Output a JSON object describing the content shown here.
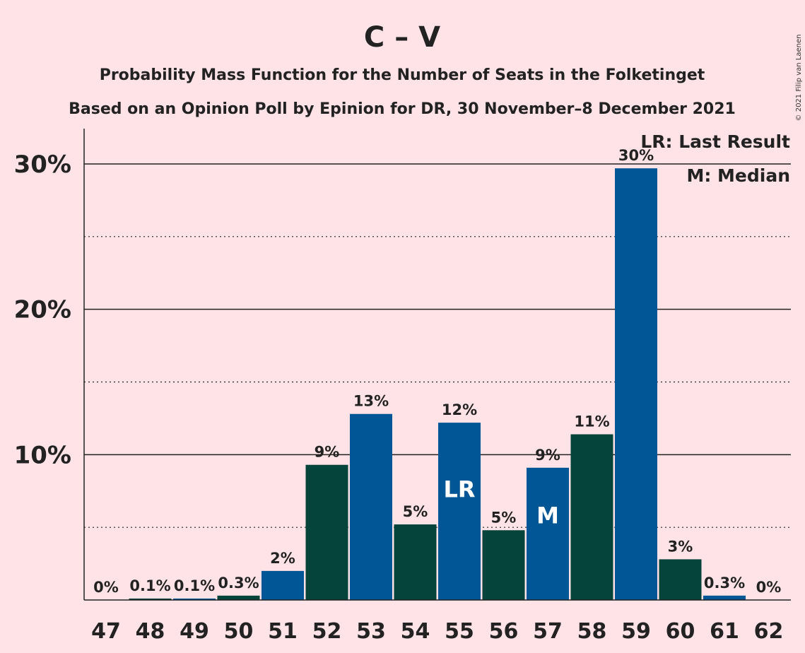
{
  "chart_data": {
    "type": "bar",
    "title": "C – V",
    "subtitle1": "Probability Mass Function for the Number of Seats in the Folketinget",
    "subtitle2": "Based on an Opinion Poll by Epinion for DR, 30 November–8 December 2021",
    "copyright": "© 2021 Filip van Laenen",
    "categories": [
      "47",
      "48",
      "49",
      "50",
      "51",
      "52",
      "53",
      "54",
      "55",
      "56",
      "57",
      "58",
      "59",
      "60",
      "61",
      "62"
    ],
    "values": [
      0,
      0.1,
      0.1,
      0.3,
      2.0,
      9.3,
      12.8,
      5.2,
      12.2,
      4.8,
      9.1,
      11.4,
      29.7,
      2.8,
      0.3,
      0
    ],
    "data_labels": [
      "0%",
      "0.1%",
      "0.1%",
      "0.3%",
      "2%",
      "9%",
      "13%",
      "5%",
      "12%",
      "5%",
      "9%",
      "11%",
      "30%",
      "3%",
      "0.3%",
      "0%"
    ],
    "bar_colors": [
      "#04443a",
      "#04443a",
      "#015696",
      "#04443a",
      "#015696",
      "#04443a",
      "#015696",
      "#04443a",
      "#015696",
      "#04443a",
      "#015696",
      "#04443a",
      "#015696",
      "#04443a",
      "#015696",
      "#04443a"
    ],
    "ylim": [
      0,
      32.5
    ],
    "yticks": [
      10,
      20,
      30
    ],
    "ytick_labels": [
      "10%",
      "20%",
      "30%"
    ],
    "minor_gridlines": [
      5,
      15,
      25
    ],
    "markers": [
      {
        "category": "55",
        "label": "LR"
      },
      {
        "category": "57",
        "label": "M"
      }
    ],
    "legend": {
      "placement": "top-right",
      "entries": [
        "LR: Last Result",
        "M: Median"
      ]
    },
    "colors": {
      "background": "#ffe3e7",
      "primary_blue": "#015696",
      "primary_green": "#04443a"
    }
  }
}
